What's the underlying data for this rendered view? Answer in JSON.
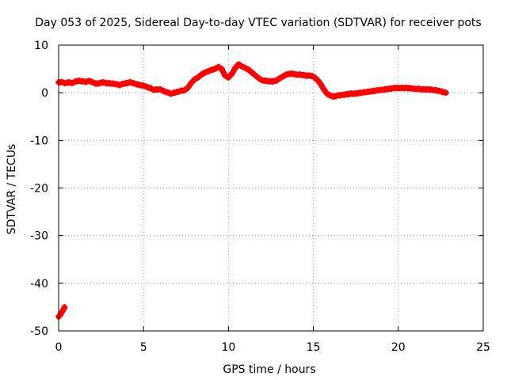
{
  "chart_data": {
    "type": "scatter",
    "title": "Day 053 of 2025, Sidereal Day-to-day VTEC variation (SDTVAR) for receiver pots",
    "xlabel": "GPS time / hours",
    "ylabel": "SDTVAR / TECUs",
    "xlim": [
      0,
      25
    ],
    "ylim": [
      -50,
      10
    ],
    "xticks": [
      0,
      5,
      10,
      15,
      20,
      25
    ],
    "yticks": [
      -50,
      -40,
      -30,
      -20,
      -10,
      0,
      10
    ],
    "grid": true,
    "series": [
      {
        "name": "SDTVAR",
        "color": "#ff0000",
        "marker": "plus",
        "segments": [
          {
            "x": [
              0.0,
              0.1,
              0.2,
              0.3,
              0.35
            ],
            "y": [
              -47.0,
              -46.6,
              -46.0,
              -45.4,
              -45.0
            ]
          },
          {
            "x": [
              0.0,
              0.2,
              0.4,
              0.6,
              0.8,
              1.0,
              1.2,
              1.4,
              1.6,
              1.8,
              2.0,
              2.2,
              2.4,
              2.6,
              2.8,
              3.0,
              3.2,
              3.4,
              3.6,
              3.8,
              4.0,
              4.2,
              4.4,
              4.6,
              4.8,
              5.0,
              5.2,
              5.4,
              5.6,
              5.8,
              6.0,
              6.2,
              6.4,
              6.6,
              6.8,
              7.0,
              7.2,
              7.4,
              7.6,
              7.8,
              8.0,
              8.2,
              8.4,
              8.6,
              8.8,
              9.0,
              9.2,
              9.4,
              9.6,
              9.8,
              10.0,
              10.2,
              10.4,
              10.6,
              10.8,
              11.0,
              11.2,
              11.4,
              11.6,
              11.8,
              12.0,
              12.2,
              12.4,
              12.6,
              12.8,
              13.0,
              13.2,
              13.4,
              13.6,
              13.8,
              14.0,
              14.2,
              14.4,
              14.6,
              14.8,
              15.0,
              15.2,
              15.4,
              15.6,
              15.8,
              16.0,
              16.2,
              16.4,
              16.6,
              16.8,
              17.0,
              17.2,
              17.4,
              17.6,
              17.8,
              18.0,
              18.2,
              18.4,
              18.6,
              18.8,
              19.0,
              19.2,
              19.4,
              19.6,
              19.8,
              20.0,
              20.2,
              20.4,
              20.6,
              20.8,
              21.0,
              21.2,
              21.4,
              21.6,
              21.8,
              22.0,
              22.2,
              22.4,
              22.6,
              22.8
            ],
            "y": [
              2.2,
              2.2,
              2.0,
              2.2,
              2.0,
              2.4,
              2.5,
              2.4,
              2.3,
              2.5,
              2.2,
              1.9,
              2.0,
              2.2,
              2.0,
              2.0,
              1.9,
              1.8,
              1.6,
              1.9,
              2.0,
              2.2,
              2.0,
              1.8,
              1.6,
              1.5,
              1.2,
              1.0,
              0.6,
              0.7,
              0.7,
              0.3,
              0.1,
              -0.2,
              0.0,
              0.2,
              0.4,
              0.5,
              1.0,
              2.0,
              2.8,
              3.2,
              3.8,
              4.2,
              4.5,
              4.8,
              5.0,
              5.4,
              5.0,
              3.6,
              3.2,
              4.0,
              5.2,
              6.0,
              5.5,
              5.2,
              4.8,
              4.2,
              3.6,
              3.0,
              2.6,
              2.5,
              2.4,
              2.4,
              2.5,
              3.0,
              3.4,
              3.8,
              4.0,
              4.0,
              3.8,
              3.8,
              3.7,
              3.6,
              3.6,
              3.4,
              2.8,
              2.0,
              0.8,
              -0.2,
              -0.6,
              -0.8,
              -0.6,
              -0.5,
              -0.4,
              -0.3,
              -0.2,
              -0.2,
              -0.1,
              0.0,
              0.1,
              0.2,
              0.3,
              0.4,
              0.5,
              0.6,
              0.7,
              0.8,
              0.9,
              1.0,
              1.0,
              1.0,
              1.0,
              1.0,
              0.9,
              0.8,
              0.8,
              0.7,
              0.7,
              0.7,
              0.6,
              0.5,
              0.4,
              0.2,
              0.0
            ]
          }
        ]
      }
    ]
  }
}
